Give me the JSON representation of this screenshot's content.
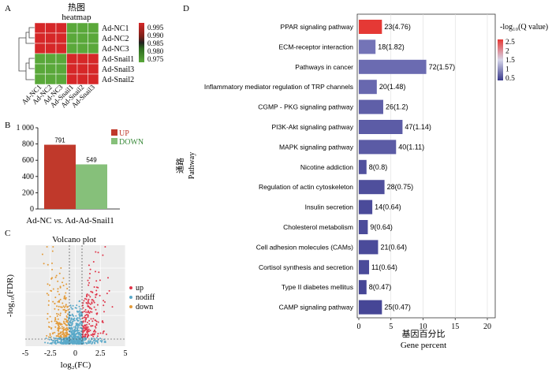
{
  "panel_labels": {
    "a": "A",
    "b": "B",
    "c": "C",
    "d": "D"
  },
  "colors": {
    "heat_red": "#d62728",
    "heat_green": "#5aa83a",
    "up": "#c0392b",
    "down": "#86c07a",
    "nodiff": "#5aa9c9",
    "volcano_down": "#e39b3a",
    "bar_low": "#4a4a9a",
    "bar_high": "#e53935"
  },
  "chart_data": [
    {
      "type": "heatmap",
      "title_cn": "热图",
      "title": "heatmap",
      "rows": [
        "Ad-NC1",
        "Ad-NC2",
        "Ad-NC3",
        "Ad-Snail1",
        "Ad-Snail3",
        "Ad-Snail2"
      ],
      "columns": [
        "Ad-NC1",
        "Ad-NC2",
        "Ad-NC3",
        "Ad-Snail1",
        "Ad-Snail2",
        "Ad-Snail3"
      ],
      "values": [
        [
          0.995,
          0.995,
          0.995,
          0.975,
          0.975,
          0.975
        ],
        [
          0.995,
          0.995,
          0.995,
          0.975,
          0.975,
          0.975
        ],
        [
          0.995,
          0.995,
          0.995,
          0.975,
          0.975,
          0.975
        ],
        [
          0.975,
          0.975,
          0.975,
          0.995,
          0.995,
          0.995
        ],
        [
          0.975,
          0.975,
          0.975,
          0.995,
          0.995,
          0.995
        ],
        [
          0.975,
          0.975,
          0.975,
          0.995,
          0.995,
          0.995
        ]
      ],
      "legend_ticks": [
        "0.995",
        "0.990",
        "0.985",
        "0.980",
        "0.975"
      ]
    },
    {
      "type": "bar",
      "categories": [
        "UP",
        "DOWN"
      ],
      "values": [
        791,
        549
      ],
      "value_labels": [
        "791",
        "549"
      ],
      "legend": [
        "UP",
        "DOWN"
      ],
      "xlabel_parts": [
        "Ad-NC ",
        "vs.",
        " Ad-Ad-Snail1"
      ],
      "ylim": [
        0,
        1000
      ],
      "yticks": [
        "0",
        "200",
        "400",
        "600",
        "800",
        "1 000"
      ]
    },
    {
      "type": "scatter",
      "title": "Volcano plot",
      "xlabel": "log₂(FC)",
      "ylabel": "-log₁₀(FDR)",
      "xlim": [
        -5,
        5
      ],
      "xticks": [
        "-5",
        "-2.5",
        "0",
        "2.5",
        "5"
      ],
      "legend": [
        "up",
        "nodiff",
        "down"
      ]
    },
    {
      "type": "bar",
      "orientation": "horizontal",
      "categories": [
        "PPAR signaling pathway",
        "ECM-receptor interaction",
        "Pathways in cancer",
        "Inflammatory mediator regulation of TRP channels",
        "CGMP - PKG signaling pathway",
        "PI3K-Akt signaling pathway",
        "MAPK signaling pathway",
        "Nicotine addiction",
        "Regulation of actin cytoskeleton",
        "Insulin secretion",
        "Cholesterol metabolism",
        "Cell adhesion molecules (CAMs)",
        "Cortisol synthesis and secretion",
        "Type II diabetes mellitus",
        "CAMP signaling pathway"
      ],
      "values": [
        3.6,
        2.6,
        10.5,
        2.8,
        3.8,
        6.8,
        5.8,
        1.2,
        4.0,
        2.1,
        1.4,
        3.0,
        1.6,
        1.2,
        3.6
      ],
      "q_values": [
        4.76,
        1.82,
        1.57,
        1.48,
        1.2,
        1.14,
        1.11,
        0.8,
        0.75,
        0.64,
        0.64,
        0.64,
        0.64,
        0.47,
        0.47
      ],
      "value_labels": [
        "23(4.76)",
        "18(1.82)",
        "72(1.57)",
        "20(1.48)",
        "26(1.2)",
        "47(1.14)",
        "40(1.11)",
        "8(0.8)",
        "28(0.75)",
        "14(0.64)",
        "9(0.64)",
        "21(0.64)",
        "11(0.64)",
        "8(0.47)",
        "25(0.47)"
      ],
      "xlim": [
        0,
        20
      ],
      "xticks": [
        "0",
        "5",
        "10",
        "15",
        "20"
      ],
      "xlabel_cn": "基因百分比",
      "xlabel": "Gene percent",
      "ylabel_cn": "通路",
      "ylabel": "Pathway",
      "legend_title": "-log₁₀(Q value)",
      "legend_ticks": [
        "2.5",
        "2",
        "1.5",
        "1",
        "0.5"
      ]
    }
  ]
}
